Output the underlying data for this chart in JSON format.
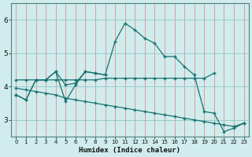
{
  "xlabel": "Humidex (Indice chaleur)",
  "bg_color": "#d0ecec",
  "line_color": "#1a7070",
  "grid_color_v": "#e08080",
  "grid_color_h": "#80c0c0",
  "xlim_min": -0.5,
  "xlim_max": 23.5,
  "ylim_min": 2.5,
  "ylim_max": 6.5,
  "yticks": [
    3,
    4,
    5,
    6
  ],
  "xticks": [
    0,
    1,
    2,
    3,
    4,
    5,
    6,
    7,
    8,
    9,
    10,
    11,
    12,
    13,
    14,
    15,
    16,
    17,
    18,
    19,
    20,
    21,
    22,
    23
  ],
  "line_peak_x": [
    0,
    1,
    2,
    3,
    4,
    5,
    6,
    7,
    8,
    9,
    10,
    11,
    12,
    13,
    14,
    15,
    16,
    17,
    18,
    19,
    20,
    21,
    22,
    23
  ],
  "line_peak_y": [
    3.75,
    3.6,
    4.2,
    4.2,
    4.45,
    4.05,
    4.1,
    4.45,
    4.4,
    4.35,
    5.35,
    5.9,
    5.7,
    5.45,
    5.3,
    4.9,
    4.9,
    4.6,
    4.35,
    3.25,
    3.2,
    2.65,
    2.75,
    2.9
  ],
  "line_flat_x": [
    0,
    1,
    2,
    3,
    4,
    5,
    6,
    7,
    8,
    9,
    10,
    11,
    12,
    13,
    14,
    15,
    16,
    17,
    18,
    19,
    20
  ],
  "line_flat_y": [
    4.2,
    4.2,
    4.2,
    4.2,
    4.2,
    4.2,
    4.2,
    4.2,
    4.2,
    4.25,
    4.25,
    4.25,
    4.25,
    4.25,
    4.25,
    4.25,
    4.25,
    4.25,
    4.25,
    4.25,
    4.4
  ],
  "line_diag1_x": [
    0,
    1,
    2,
    3,
    4,
    5,
    6,
    7,
    8,
    9,
    10,
    11,
    12,
    13,
    14,
    15,
    16,
    17,
    18,
    19,
    20,
    21,
    22,
    23
  ],
  "line_diag1_y": [
    3.95,
    3.9,
    3.85,
    3.8,
    3.75,
    3.65,
    3.6,
    3.55,
    3.5,
    3.45,
    3.4,
    3.35,
    3.3,
    3.25,
    3.2,
    3.15,
    3.1,
    3.05,
    3.0,
    2.95,
    2.9,
    2.85,
    2.8,
    2.9
  ],
  "line_short_x": [
    0,
    1,
    2,
    3,
    4,
    5,
    6,
    7,
    8,
    9
  ],
  "line_short_y": [
    3.75,
    3.6,
    4.2,
    4.2,
    4.45,
    3.55,
    4.05,
    4.45,
    4.4,
    4.35
  ],
  "markersize": 2.5
}
